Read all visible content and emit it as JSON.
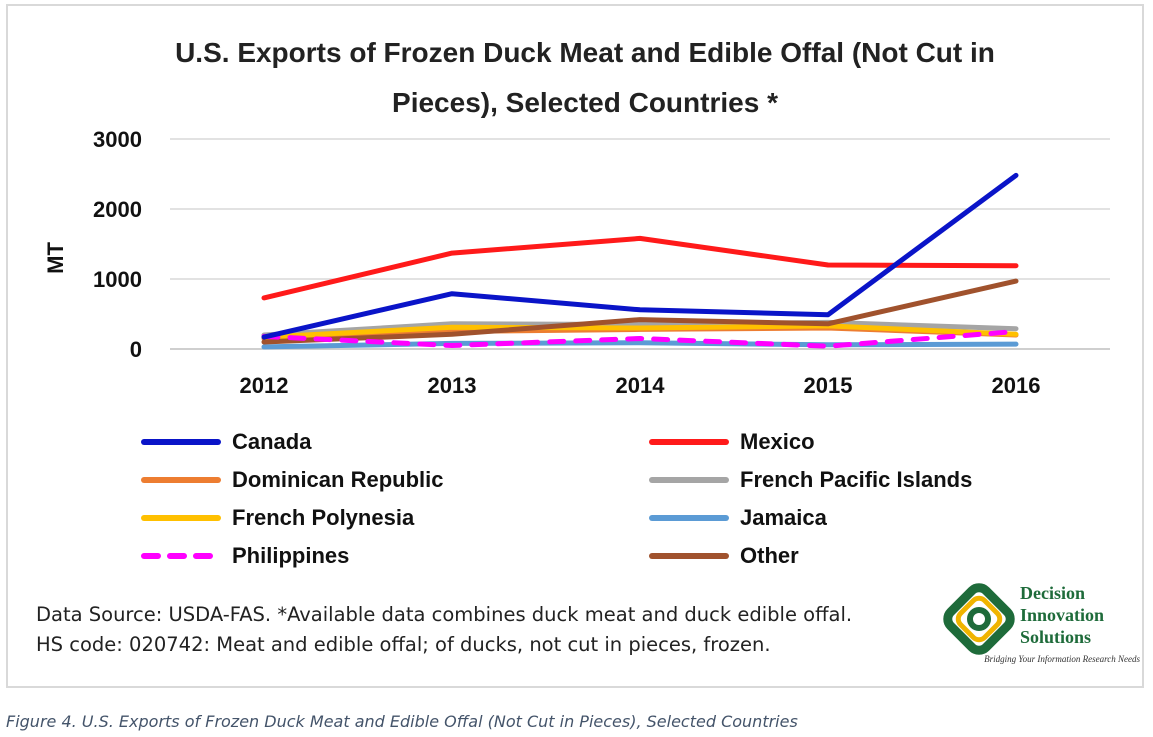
{
  "chart_data": {
    "type": "line",
    "title": "U.S. Exports of Frozen Duck Meat and Edible Offal (Not Cut in Pieces), Selected Countries *",
    "xlabel": "",
    "ylabel": "MT",
    "categories": [
      "2012",
      "2013",
      "2014",
      "2015",
      "2016"
    ],
    "ylim": [
      0,
      3000
    ],
    "yticks": [
      "0",
      "1000",
      "2000",
      "3000"
    ],
    "grid": true,
    "legend_placement": "bottom",
    "series": [
      {
        "name": "Canada",
        "color": "#0a14c8",
        "dashed": false,
        "values": [
          170,
          790,
          560,
          490,
          2480
        ]
      },
      {
        "name": "Mexico",
        "color": "#ff1a1a",
        "dashed": false,
        "values": [
          730,
          1370,
          1580,
          1200,
          1190
        ]
      },
      {
        "name": "Dominican Republic",
        "color": "#ed7d31",
        "dashed": false,
        "values": [
          150,
          250,
          280,
          300,
          200
        ]
      },
      {
        "name": "French Pacific Islands",
        "color": "#a5a5a5",
        "dashed": false,
        "values": [
          200,
          360,
          350,
          380,
          290
        ]
      },
      {
        "name": "French Polynesia",
        "color": "#ffc000",
        "dashed": false,
        "values": [
          170,
          310,
          300,
          330,
          210
        ]
      },
      {
        "name": "Jamaica",
        "color": "#5b9bd5",
        "dashed": false,
        "values": [
          30,
          80,
          90,
          60,
          70
        ]
      },
      {
        "name": "Philippines",
        "color": "#ff00ff",
        "dashed": true,
        "values": [
          180,
          50,
          150,
          40,
          250
        ]
      },
      {
        "name": "Other",
        "color": "#a0522d",
        "dashed": false,
        "values": [
          100,
          210,
          420,
          360,
          970
        ]
      }
    ]
  },
  "source_text": {
    "line1": "Data Source: USDA-FAS. *Available data combines duck meat and duck edible offal.",
    "line2": "HS code: 020742: Meat and edible offal; of ducks, not cut in pieces, frozen."
  },
  "logo": {
    "line1": "Decision",
    "line2": "Innovation",
    "line3": "Solutions",
    "tagline": "Bridging Your Information Research Needs",
    "color": "#1e6b3a",
    "accent": "#f0b400"
  },
  "caption": "Figure 4. U.S. Exports of Frozen Duck Meat and Edible Offal (Not Cut in Pieces), Selected Countries"
}
